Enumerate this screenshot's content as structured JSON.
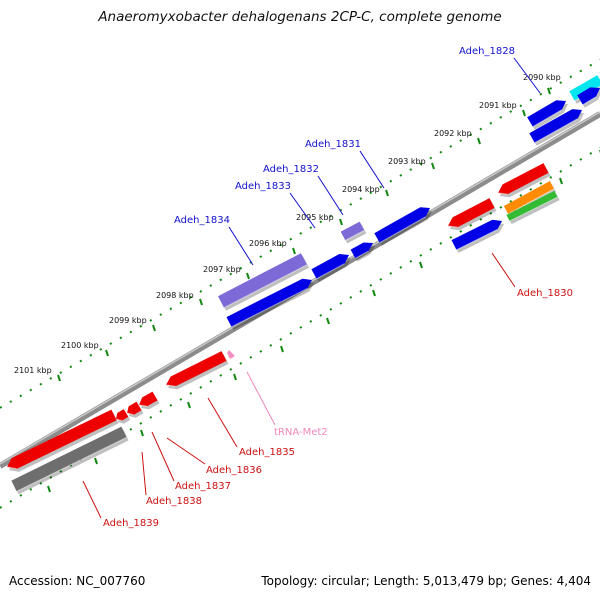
{
  "title": "Anaeromyxobacter dehalogenans 2CP-C, complete genome",
  "footer": {
    "accession_label": "Accession:",
    "accession": "NC_007760",
    "topology_text": "Topology: circular; Length: 5,013,479 bp; Genes: 4,404"
  },
  "colors": {
    "forward_cds": "#0000e6",
    "reverse_cds": "#ee0000",
    "pseudo_cds": "#7e6ad6",
    "trna": "#f58fc0",
    "cyan_feature": "#00e5ee",
    "orange_feature": "#ff8c00",
    "green_feature": "#33bb33",
    "gray_feature": "#6e6e6e",
    "backbone": "#8c8c8c",
    "tick": "#118811",
    "forward_label": "#1111cc",
    "reverse_label": "#cc1111",
    "trna_label": "#ee88bb"
  },
  "ticks": [
    {
      "label": "2090 kbp"
    },
    {
      "label": "2091 kbp"
    },
    {
      "label": "2092 kbp"
    },
    {
      "label": "2093 kbp"
    },
    {
      "label": "2094 kbp"
    },
    {
      "label": "2095 kbp"
    },
    {
      "label": "2096 kbp"
    },
    {
      "label": "2097 kbp"
    },
    {
      "label": "2098 kbp"
    },
    {
      "label": "2099 kbp"
    },
    {
      "label": "2100 kbp"
    },
    {
      "label": "2101 kbp"
    }
  ],
  "genes_forward": [
    {
      "name": "Adeh_1828"
    },
    {
      "name": "Adeh_1831"
    },
    {
      "name": "Adeh_1832"
    },
    {
      "name": "Adeh_1833"
    },
    {
      "name": "Adeh_1834"
    }
  ],
  "genes_reverse": [
    {
      "name": "Adeh_1830"
    },
    {
      "name": "Adeh_1835"
    },
    {
      "name": "Adeh_1836"
    },
    {
      "name": "Adeh_1837"
    },
    {
      "name": "Adeh_1838"
    },
    {
      "name": "Adeh_1839"
    }
  ],
  "trna": {
    "name": "tRNA-Met2"
  }
}
